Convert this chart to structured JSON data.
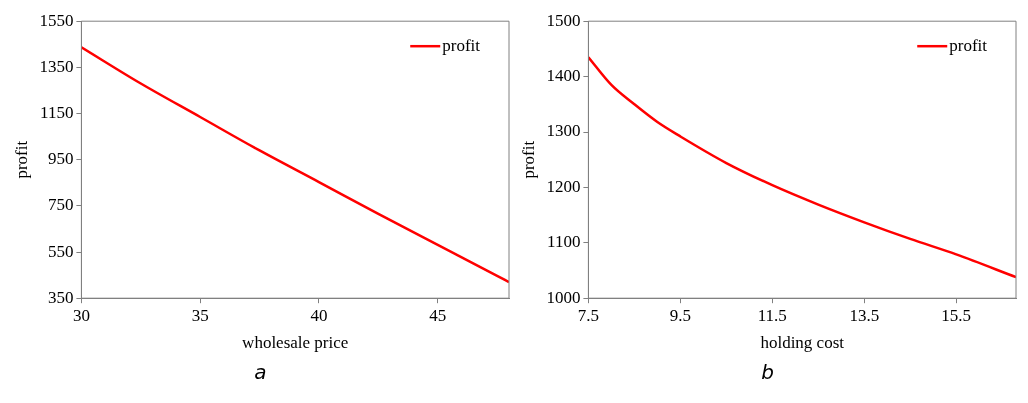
{
  "chart_data": [
    {
      "type": "line",
      "xlabel": "wholesale price",
      "ylabel": "profit",
      "annotations": [
        "a"
      ],
      "legend": "top right",
      "grid": false,
      "x": [
        30,
        32.5,
        35,
        37.5,
        40,
        42.5,
        45,
        47.5,
        48
      ],
      "series": [
        {
          "name": "profit",
          "color": "#ff0000",
          "values": [
            1437,
            1280,
            1135,
            990,
            853,
            715,
            581,
            447,
            420
          ]
        }
      ],
      "xlim": [
        30,
        48
      ],
      "xticks": [
        30,
        35,
        40,
        45
      ],
      "ylim": [
        350,
        1550
      ],
      "yticks": [
        350,
        550,
        750,
        950,
        1150,
        1350,
        1550
      ]
    },
    {
      "type": "line",
      "xlabel": "holding cost",
      "ylabel": "profit",
      "annotations": [
        "b"
      ],
      "legend": "top right",
      "grid": false,
      "x": [
        7.5,
        8,
        8.5,
        9,
        9.5,
        10.5,
        11.5,
        12.5,
        13.5,
        14.5,
        15.5,
        16.8
      ],
      "series": [
        {
          "name": "profit",
          "color": "#ff0000",
          "values": [
            1435,
            1385,
            1350,
            1318,
            1292,
            1244,
            1204,
            1169,
            1137,
            1107,
            1079,
            1038
          ]
        }
      ],
      "xlim": [
        7.5,
        16.8
      ],
      "xticks": [
        7.5,
        9.5,
        11.5,
        13.5,
        15.5
      ],
      "ylim": [
        1000,
        1500
      ],
      "yticks": [
        1000,
        1100,
        1200,
        1300,
        1400,
        1500
      ]
    }
  ]
}
